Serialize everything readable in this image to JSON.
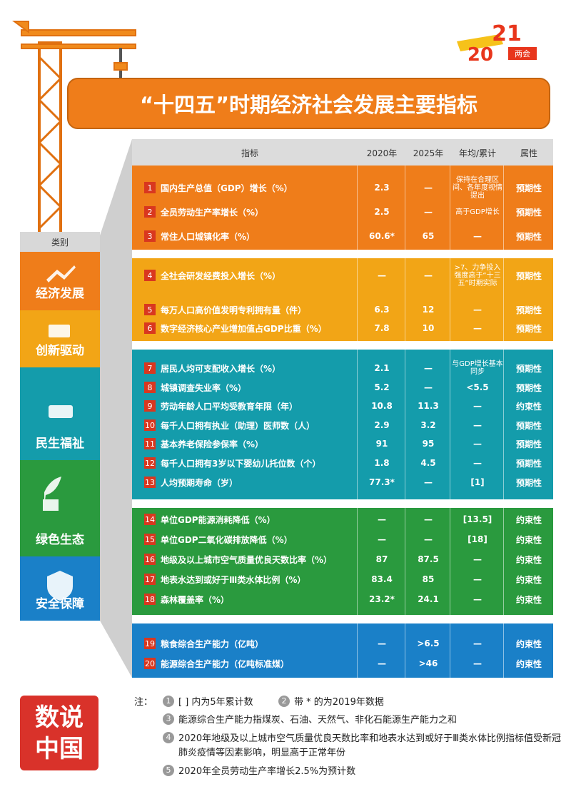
{
  "header": {
    "title": "“十四五”时期经济社会发展主要指标",
    "logo": {
      "year_a": "20",
      "year_b": "21",
      "label": "两会"
    }
  },
  "table": {
    "columns": [
      "指标",
      "2020年",
      "2025年",
      "年均/累计",
      "属性"
    ],
    "category_header": "类别",
    "categories": [
      "经济发展",
      "创新驱动",
      "民生福祉",
      "绿色生态",
      "安全保障"
    ],
    "rows": [
      [
        "1",
        "国内生产总值（GDP）增长（%）",
        "2.3",
        "—",
        "保持在合理区间、各年度视情提出",
        "预期性"
      ],
      [
        "2",
        "全员劳动生产率增长（%）",
        "2.5",
        "—",
        "高于GDP增长",
        "预期性"
      ],
      [
        "3",
        "常住人口城镇化率（%）",
        "60.6*",
        "65",
        "—",
        "预期性"
      ],
      [
        "4",
        "全社会研发经费投入增长（%）",
        "—",
        "—",
        ">7、力争投入强度高于“十三五”时期实际",
        "预期性"
      ],
      [
        "5",
        "每万人口高价值发明专利拥有量（件）",
        "6.3",
        "12",
        "—",
        "预期性"
      ],
      [
        "6",
        "数字经济核心产业增加值占GDP比重（%）",
        "7.8",
        "10",
        "—",
        "预期性"
      ],
      [
        "7",
        "居民人均可支配收入增长（%）",
        "2.1",
        "—",
        "与GDP增长基本同步",
        "预期性"
      ],
      [
        "8",
        "城镇调查失业率（%）",
        "5.2",
        "—",
        "<5.5",
        "预期性"
      ],
      [
        "9",
        "劳动年龄人口平均受教育年限（年）",
        "10.8",
        "11.3",
        "—",
        "约束性"
      ],
      [
        "10",
        "每千人口拥有执业（助理）医师数（人）",
        "2.9",
        "3.2",
        "—",
        "预期性"
      ],
      [
        "11",
        "基本养老保险参保率（%）",
        "91",
        "95",
        "—",
        "预期性"
      ],
      [
        "12",
        "每千人口拥有3岁以下婴幼儿托位数（个）",
        "1.8",
        "4.5",
        "—",
        "预期性"
      ],
      [
        "13",
        "人均预期寿命（岁）",
        "77.3*",
        "—",
        "[1]",
        "预期性"
      ],
      [
        "14",
        "单位GDP能源消耗降低（%）",
        "—",
        "—",
        "[13.5]",
        "约束性"
      ],
      [
        "15",
        "单位GDP二氧化碳排放降低（%）",
        "—",
        "—",
        "[18]",
        "约束性"
      ],
      [
        "16",
        "地级及以上城市空气质量优良天数比率（%）",
        "87",
        "87.5",
        "—",
        "约束性"
      ],
      [
        "17",
        "地表水达到或好于Ⅲ类水体比例（%）",
        "83.4",
        "85",
        "—",
        "约束性"
      ],
      [
        "18",
        "森林覆盖率（%）",
        "23.2*",
        "24.1",
        "—",
        "约束性"
      ],
      [
        "19",
        "粮食综合生产能力（亿吨）",
        "—",
        ">6.5",
        "—",
        "约束性"
      ],
      [
        "20",
        "能源综合生产能力（亿吨标准煤）",
        "—",
        ">46",
        "—",
        "约束性"
      ]
    ]
  },
  "notes": {
    "label": "注：",
    "items": [
      {
        "num": "1",
        "text": "[ ] 内为5年累计数"
      },
      {
        "num": "2",
        "text": "带 * 的为2019年数据"
      },
      {
        "num": "3",
        "text": "能源综合生产能力指煤炭、石油、天然气、非化石能源生产能力之和"
      },
      {
        "num": "4",
        "text": "2020年地级及以上城市空气质量优良天数比率和地表水达到或好于Ⅲ类水体比例指标值受新冠肺炎疫情等因素影响，明显高于正常年份"
      },
      {
        "num": "5",
        "text": "2020年全员劳动生产率增长2.5%为预计数"
      }
    ]
  },
  "stamp": "数说中国"
}
